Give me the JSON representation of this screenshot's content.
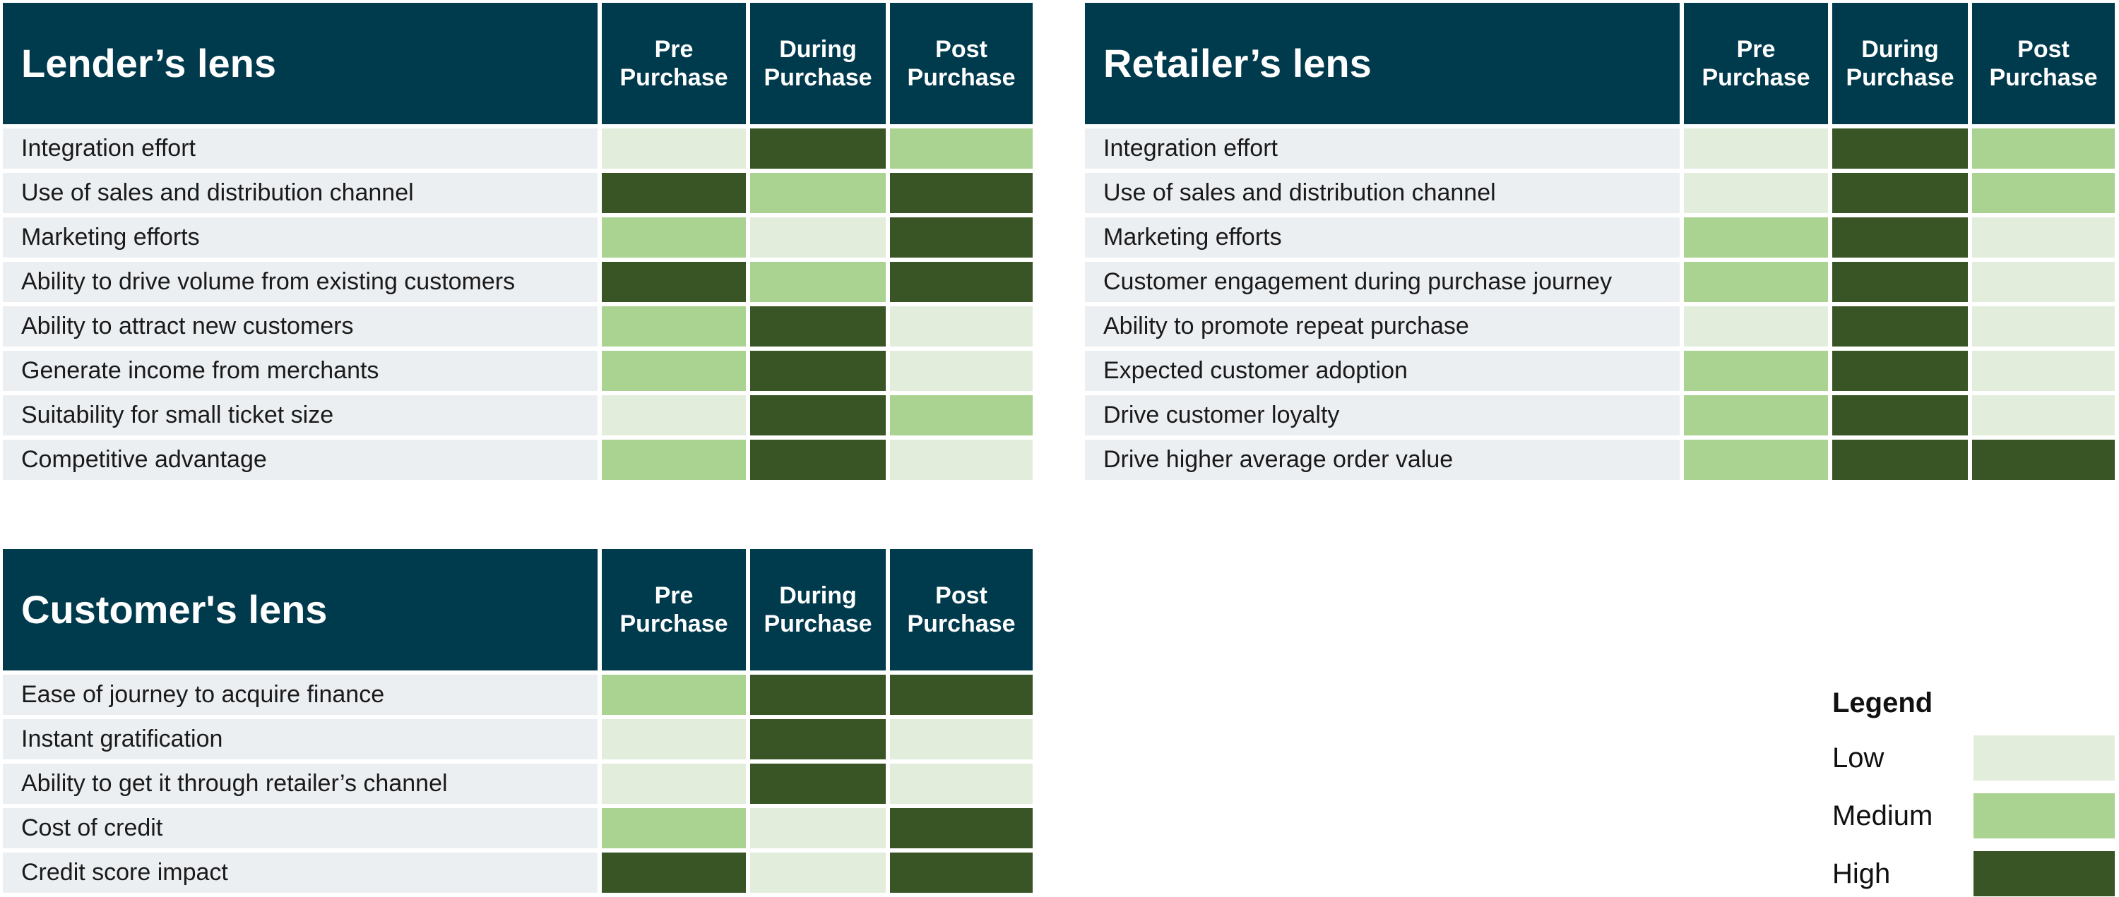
{
  "chart_data": {
    "type": "heatmap",
    "colors": {
      "Low": "#e2eedb",
      "Medium": "#aad290",
      "High": "#3a5525"
    },
    "header_bg": "#003a4d",
    "columns": [
      "Pre\nPurchase",
      "During\nPurchase",
      "Post\nPurchase"
    ],
    "tables": [
      {
        "id": "lender",
        "title": "Lender’s lens",
        "rows": [
          {
            "label": "Integration effort",
            "values": [
              "Low",
              "High",
              "Medium"
            ]
          },
          {
            "label": "Use of sales and distribution channel",
            "values": [
              "High",
              "Medium",
              "High"
            ]
          },
          {
            "label": "Marketing efforts",
            "values": [
              "Medium",
              "Low",
              "High"
            ]
          },
          {
            "label": "Ability to drive volume from existing customers",
            "values": [
              "High",
              "Medium",
              "High"
            ]
          },
          {
            "label": "Ability to attract new customers",
            "values": [
              "Medium",
              "High",
              "Low"
            ]
          },
          {
            "label": "Generate income from merchants",
            "values": [
              "Medium",
              "High",
              "Low"
            ]
          },
          {
            "label": "Suitability for small ticket size",
            "values": [
              "Low",
              "High",
              "Medium"
            ]
          },
          {
            "label": "Competitive advantage",
            "values": [
              "Medium",
              "High",
              "Low"
            ]
          }
        ]
      },
      {
        "id": "retailer",
        "title": "Retailer’s lens",
        "rows": [
          {
            "label": "Integration effort",
            "values": [
              "Low",
              "High",
              "Medium"
            ]
          },
          {
            "label": "Use of sales and distribution channel",
            "values": [
              "Low",
              "High",
              "Medium"
            ]
          },
          {
            "label": "Marketing efforts",
            "values": [
              "Medium",
              "High",
              "Low"
            ]
          },
          {
            "label": "Customer engagement during purchase journey",
            "values": [
              "Medium",
              "High",
              "Low"
            ]
          },
          {
            "label": "Ability to promote repeat purchase",
            "values": [
              "Low",
              "High",
              "Low"
            ]
          },
          {
            "label": "Expected customer adoption",
            "values": [
              "Medium",
              "High",
              "Low"
            ]
          },
          {
            "label": "Drive customer loyalty",
            "values": [
              "Medium",
              "High",
              "Low"
            ]
          },
          {
            "label": "Drive higher average order value",
            "values": [
              "Medium",
              "High",
              "High"
            ]
          }
        ]
      },
      {
        "id": "customer",
        "title": "Customer's lens",
        "rows": [
          {
            "label": "Ease of journey to acquire finance",
            "values": [
              "Medium",
              "High",
              "High"
            ]
          },
          {
            "label": "Instant gratification",
            "values": [
              "Low",
              "High",
              "Low"
            ]
          },
          {
            "label": "Ability to get it through retailer’s channel",
            "values": [
              "Low",
              "High",
              "Low"
            ]
          },
          {
            "label": "Cost of credit",
            "values": [
              "Medium",
              "Low",
              "High"
            ]
          },
          {
            "label": "Credit score impact",
            "values": [
              "High",
              "Low",
              "High"
            ]
          }
        ]
      }
    ],
    "legend": {
      "title": "Legend",
      "items": [
        "Low",
        "Medium",
        "High"
      ],
      "placement": "bottom-right"
    }
  }
}
